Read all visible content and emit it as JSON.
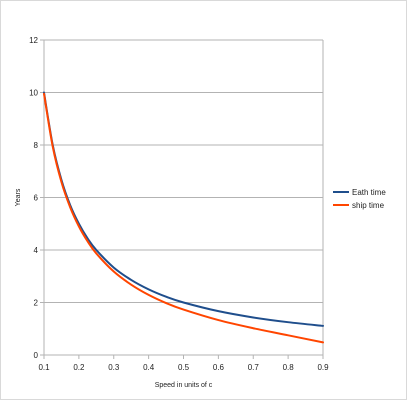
{
  "chart_data": {
    "type": "line",
    "title": "",
    "xlabel": "Speed in units of c",
    "ylabel": "Years",
    "xlim": [
      0.1,
      0.9
    ],
    "ylim": [
      0,
      12
    ],
    "x_ticks": [
      0.1,
      0.2,
      0.3,
      0.4,
      0.5,
      0.6,
      0.7,
      0.8,
      0.9
    ],
    "x_tick_labels": [
      "0.1",
      "0.2",
      "0.3",
      "0.4",
      "0.5",
      "0.6",
      "0.7",
      "0.8",
      "0.9"
    ],
    "y_ticks": [
      0,
      2,
      4,
      6,
      8,
      10,
      12
    ],
    "y_tick_labels": [
      "0",
      "2",
      "4",
      "6",
      "8",
      "10",
      "12"
    ],
    "grid": "horizontal",
    "legend_position": "right",
    "x": [
      0.1,
      0.125,
      0.15,
      0.175,
      0.2,
      0.225,
      0.25,
      0.3,
      0.35,
      0.4,
      0.45,
      0.5,
      0.6,
      0.7,
      0.8,
      0.9
    ],
    "series": [
      {
        "name": "Eath time",
        "color": "#1f4e8c",
        "values": [
          10.0,
          8.0,
          6.67,
          5.71,
          5.0,
          4.44,
          4.0,
          3.33,
          2.86,
          2.5,
          2.22,
          2.0,
          1.67,
          1.43,
          1.25,
          1.11
        ]
      },
      {
        "name": "ship time",
        "color": "#ff4500",
        "values": [
          9.95,
          7.94,
          6.59,
          5.63,
          4.9,
          4.33,
          3.87,
          3.18,
          2.68,
          2.29,
          1.98,
          1.73,
          1.33,
          1.02,
          0.75,
          0.48
        ]
      }
    ]
  }
}
